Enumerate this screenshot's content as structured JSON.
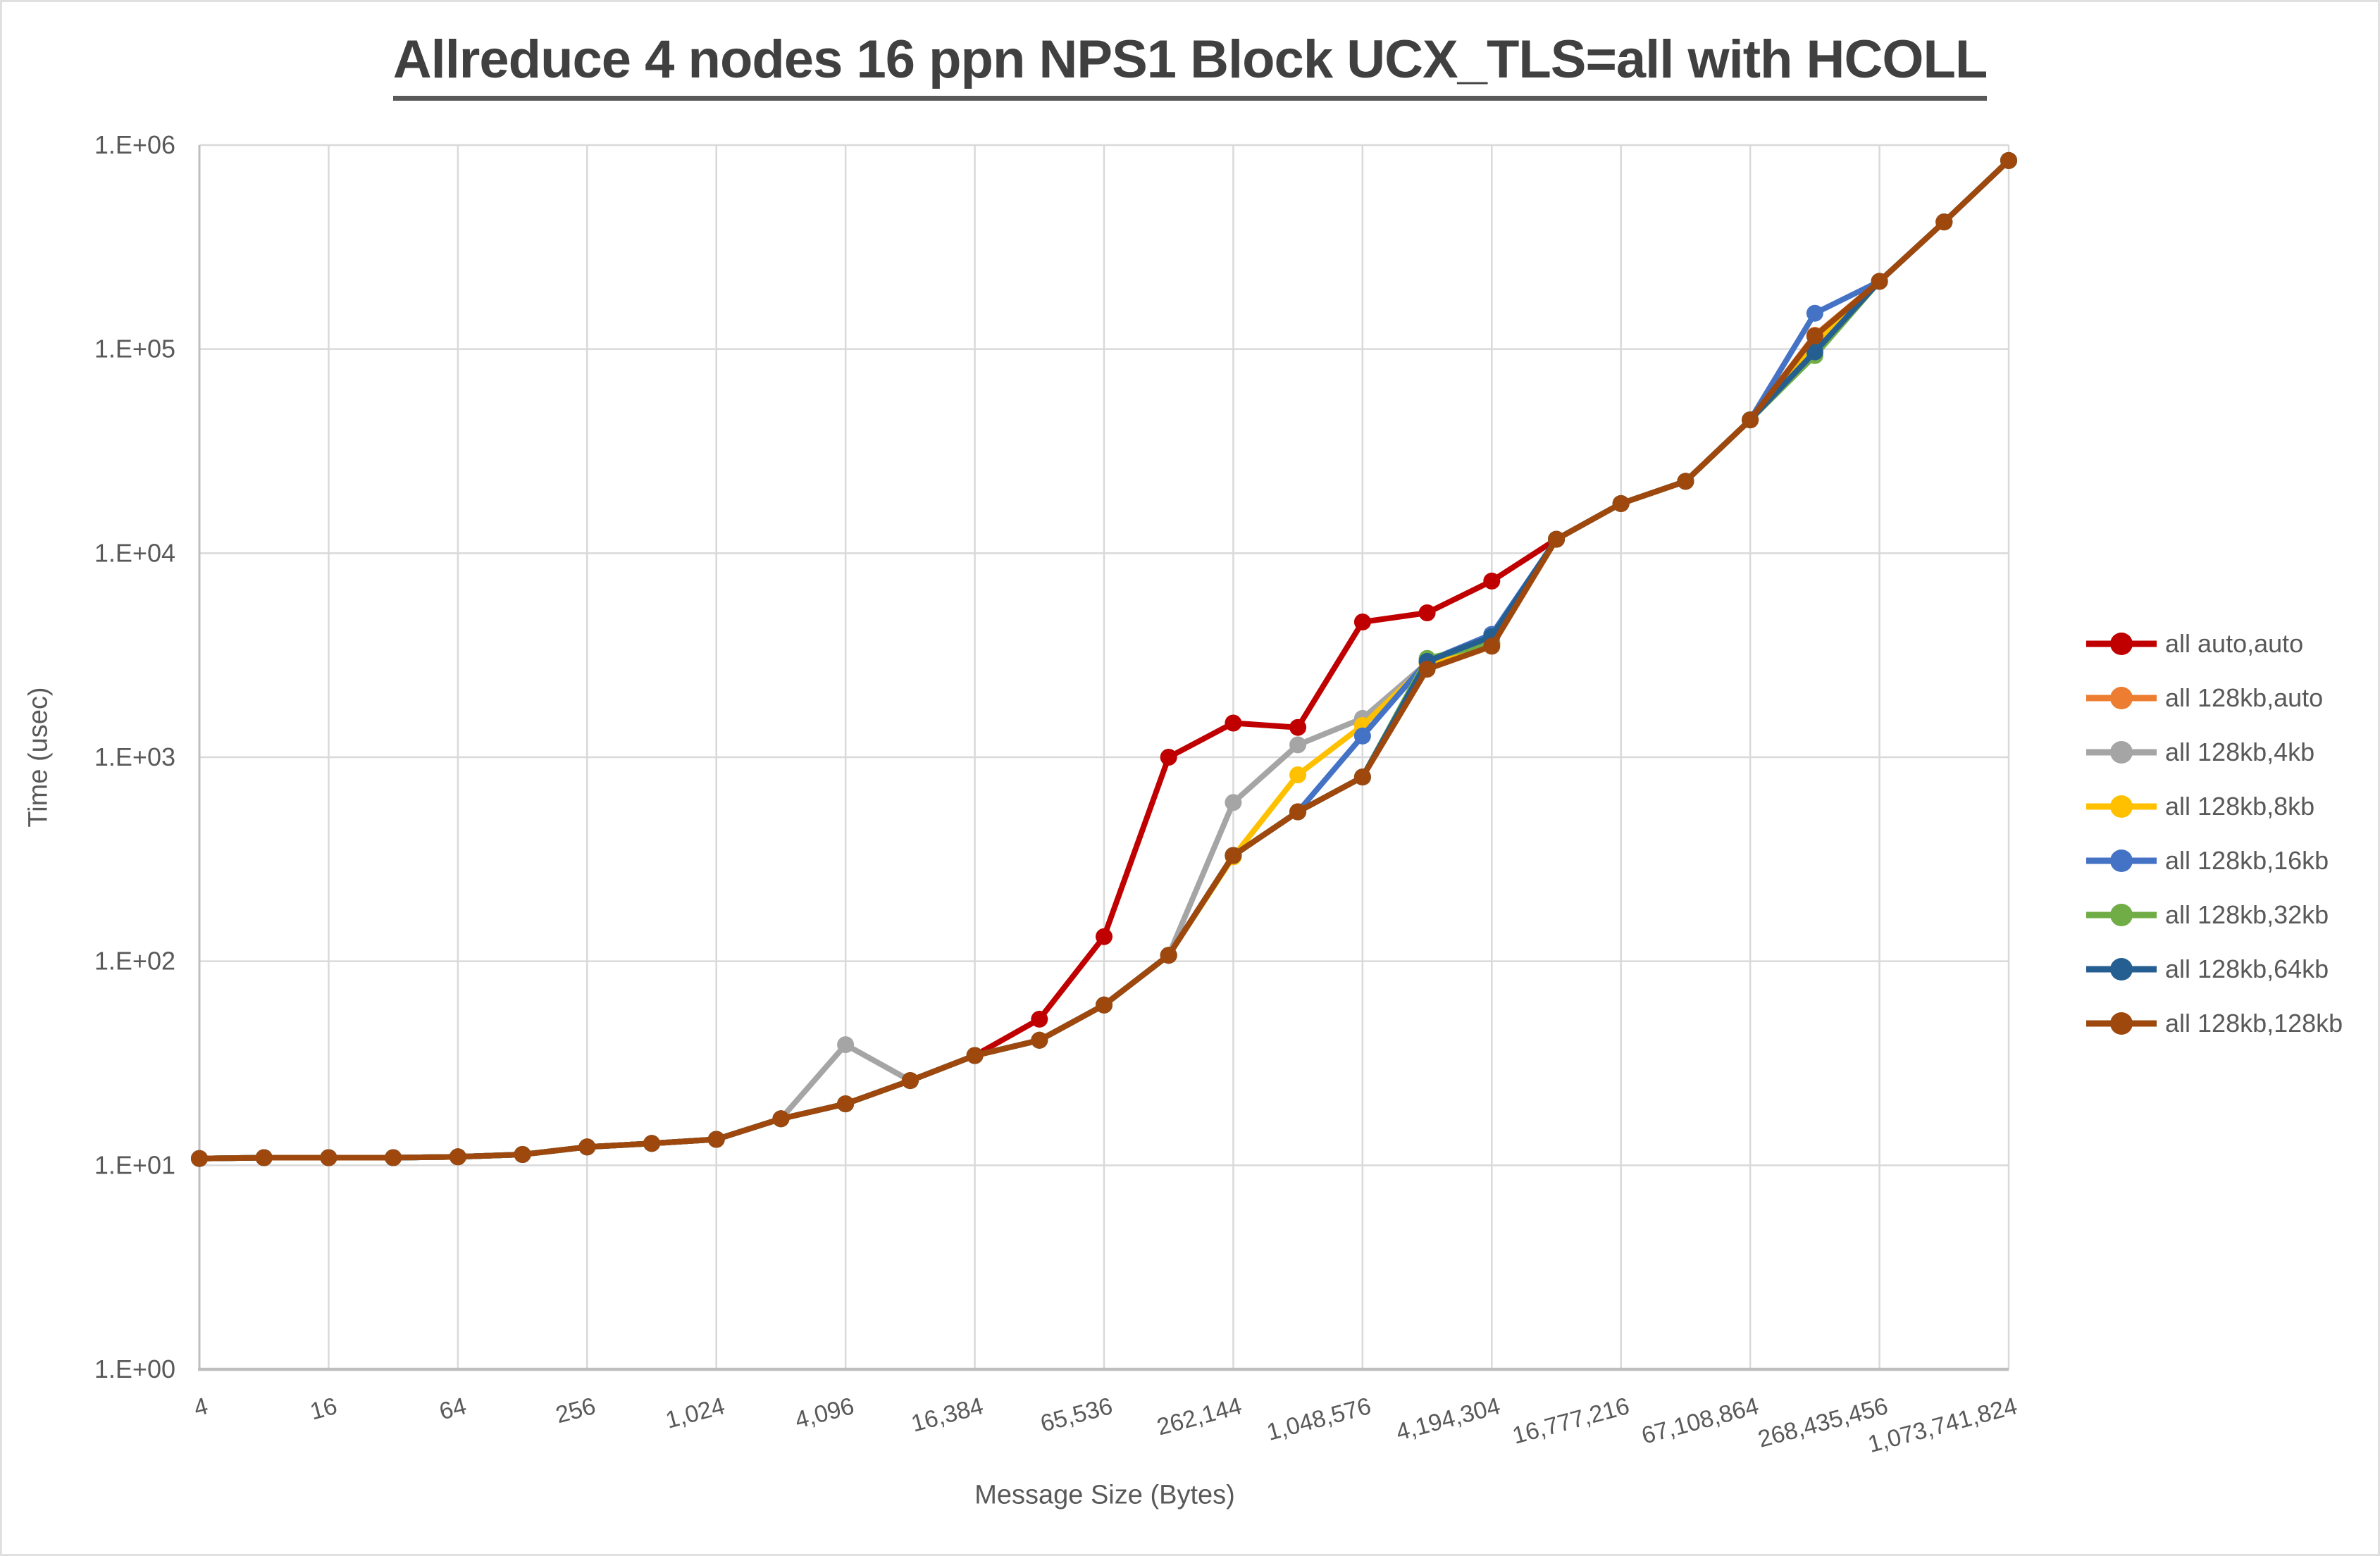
{
  "title": "Allreduce 4 nodes 16 ppn NPS1 Block UCX_TLS=all with HCOLL",
  "chart_data": {
    "type": "line",
    "title": "Allreduce 4 nodes 16 ppn NPS1 Block UCX_TLS=all with HCOLL",
    "xlabel": "Message Size (Bytes)",
    "ylabel": "Time (usec)",
    "x_scale": "log2",
    "y_scale": "log10",
    "ylim": [
      1,
      1000000
    ],
    "grid": true,
    "legend_position": "right",
    "y_tick_labels": [
      "1.E+00",
      "1.E+01",
      "1.E+02",
      "1.E+03",
      "1.E+04",
      "1.E+05",
      "1.E+06"
    ],
    "x_tick_labels": [
      "4",
      "16",
      "64",
      "256",
      "1,024",
      "4,096",
      "16,384",
      "65,536",
      "262,144",
      "1,048,576",
      "4,194,304",
      "16,777,216",
      "67,108,864",
      "268,435,456",
      "1,073,741,824"
    ],
    "x": [
      4,
      8,
      16,
      32,
      64,
      128,
      256,
      512,
      1024,
      2048,
      4096,
      8192,
      16384,
      32768,
      65536,
      131072,
      262144,
      524288,
      1048576,
      2097152,
      4194304,
      8388608,
      16777216,
      33554432,
      67108864,
      134217728,
      268435456,
      536870912,
      1073741824
    ],
    "series": [
      {
        "name": "all auto,auto",
        "color": "#C00000",
        "values": [
          10.8,
          10.9,
          10.9,
          10.9,
          11.0,
          11.3,
          12.3,
          12.8,
          13.4,
          16.9,
          20,
          26,
          34.5,
          52,
          132,
          1000,
          1470,
          1400,
          4600,
          5100,
          7300,
          11700,
          17500,
          22500,
          45000,
          116000,
          215000,
          420000,
          840000
        ]
      },
      {
        "name": "all 128kb,auto",
        "color": "#ED7D31",
        "values": [
          10.8,
          10.9,
          10.9,
          10.9,
          11.0,
          11.3,
          12.3,
          12.8,
          13.4,
          16.9,
          20,
          26,
          34.5,
          41,
          61,
          107,
          330,
          540,
          800,
          2900,
          3650,
          11700,
          17500,
          22500,
          45000,
          117000,
          215000,
          420000,
          840000
        ]
      },
      {
        "name": "all 128kb,4kb",
        "color": "#A5A5A5",
        "values": [
          10.8,
          10.9,
          10.9,
          10.9,
          11.0,
          11.3,
          12.3,
          12.8,
          13.4,
          16.9,
          39,
          26,
          34.5,
          41,
          61,
          107,
          600,
          1150,
          1550,
          2900,
          3650,
          11700,
          17500,
          22500,
          45000,
          115000,
          215000,
          420000,
          840000
        ]
      },
      {
        "name": "all 128kb,8kb",
        "color": "#FFC000",
        "values": [
          10.8,
          10.9,
          10.9,
          10.9,
          11.0,
          11.3,
          12.3,
          12.8,
          13.4,
          16.9,
          20,
          26,
          34.5,
          41,
          61,
          107,
          325,
          820,
          1430,
          2850,
          3600,
          11700,
          17500,
          22500,
          45000,
          105000,
          215000,
          420000,
          840000
        ]
      },
      {
        "name": "all 128kb,16kb",
        "color": "#4472C4",
        "values": [
          10.8,
          10.9,
          10.9,
          10.9,
          11.0,
          11.3,
          12.3,
          12.8,
          13.4,
          16.9,
          20,
          26,
          34.5,
          41,
          61,
          107,
          330,
          540,
          1270,
          2950,
          4000,
          11700,
          17500,
          22500,
          45000,
          150000,
          215000,
          420000,
          840000
        ]
      },
      {
        "name": "all 128kb,32kb",
        "color": "#70AD47",
        "values": [
          10.8,
          10.9,
          10.9,
          10.9,
          11.0,
          11.3,
          12.3,
          12.8,
          13.4,
          16.9,
          20,
          26,
          34.5,
          41,
          61,
          107,
          330,
          540,
          800,
          3050,
          3600,
          11700,
          17500,
          22500,
          45000,
          93000,
          215000,
          420000,
          840000
        ]
      },
      {
        "name": "all 128kb,64kb",
        "color": "#255E91",
        "values": [
          10.8,
          10.9,
          10.9,
          10.9,
          11.0,
          11.3,
          12.3,
          12.8,
          13.4,
          16.9,
          20,
          26,
          34.5,
          41,
          61,
          107,
          330,
          540,
          800,
          2950,
          3900,
          11700,
          17500,
          22500,
          45000,
          97000,
          215000,
          420000,
          840000
        ]
      },
      {
        "name": "all 128kb,128kb",
        "color": "#9E480E",
        "values": [
          10.8,
          10.9,
          10.9,
          10.9,
          11.0,
          11.3,
          12.3,
          12.8,
          13.4,
          16.9,
          20,
          26,
          34.5,
          41,
          61,
          107,
          330,
          540,
          800,
          2700,
          3500,
          11700,
          17500,
          22500,
          45000,
          116000,
          215000,
          420000,
          840000
        ]
      }
    ]
  },
  "styling": {
    "gridline_color": "#D9D9D9",
    "axis_line_color": "#BFBFBF",
    "tick_text_color": "#595959",
    "title_color": "#404040"
  }
}
